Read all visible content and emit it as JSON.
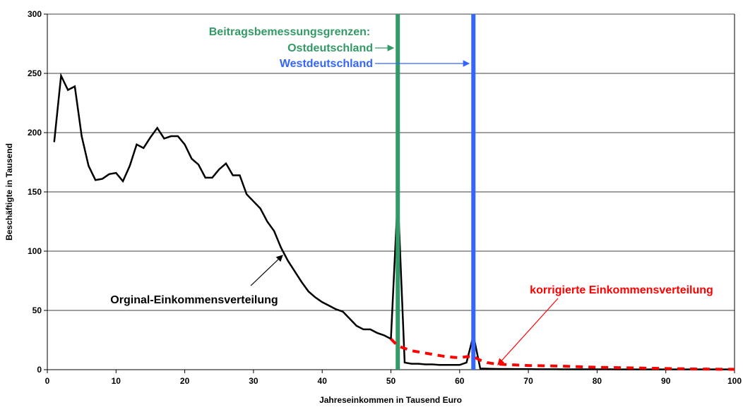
{
  "chart_data": {
    "type": "line",
    "xlabel": "Jahreseinkommen in Tausend Euro",
    "ylabel": "Beschäftigte in Tausend",
    "xlim": [
      0,
      100
    ],
    "xticks": [
      0,
      10,
      20,
      30,
      40,
      50,
      60,
      70,
      80,
      90,
      100
    ],
    "ylim": [
      0,
      300
    ],
    "yticks": [
      0,
      50,
      100,
      150,
      200,
      250,
      300
    ],
    "grid": true,
    "series": [
      {
        "name": "Orginal-Einkommensverteilung",
        "color": "#000000",
        "dashed": false,
        "x": [
          1,
          2,
          3,
          4,
          5,
          6,
          7,
          8,
          9,
          10,
          11,
          12,
          13,
          14,
          15,
          16,
          17,
          18,
          19,
          20,
          21,
          22,
          23,
          24,
          25,
          26,
          27,
          28,
          29,
          30,
          31,
          32,
          33,
          34,
          35,
          36,
          37,
          38,
          39,
          40,
          41,
          42,
          43,
          44,
          45,
          46,
          47,
          48,
          49,
          50,
          51,
          52,
          53,
          54,
          55,
          56,
          57,
          58,
          59,
          60,
          61,
          62,
          63,
          64,
          65,
          66,
          67,
          68,
          69,
          70,
          71,
          72,
          73,
          74,
          75,
          76,
          77,
          78,
          79,
          80,
          81,
          82,
          83,
          84,
          85,
          86,
          87,
          88,
          89,
          90,
          91,
          92,
          93,
          94,
          95,
          96,
          97,
          98,
          99,
          100
        ],
        "values": [
          192,
          248,
          236,
          239,
          197,
          172,
          160,
          161,
          165,
          166,
          159,
          172,
          190,
          187,
          196,
          204,
          195,
          197,
          197,
          190,
          178,
          173,
          162,
          162,
          169,
          174,
          164,
          164,
          148,
          142,
          136,
          125,
          117,
          103,
          92,
          83,
          74,
          66,
          61,
          57,
          54,
          51,
          49,
          43,
          37,
          34,
          34,
          31,
          29,
          26,
          147,
          6,
          5,
          5,
          4.5,
          4.5,
          4,
          4,
          4,
          4,
          6,
          29,
          1,
          0.8,
          0.7,
          0.6,
          0.6,
          0.5,
          0.5,
          0.5,
          0.4,
          0.4,
          0.4,
          0.4,
          0.3,
          0.3,
          0.3,
          0.3,
          0.3,
          0.3,
          0.3,
          0.3,
          0.2,
          0.2,
          0.2,
          0.2,
          0.2,
          0.2,
          0.2,
          0.2,
          0.2,
          0.2,
          0.2,
          0.2,
          0.2,
          0.2,
          0.2,
          0.2,
          0.2,
          0.2
        ]
      },
      {
        "name": "korrigierte Einkommensverteilung",
        "color": "#ff0000",
        "dashed": true,
        "x": [
          50,
          51,
          52,
          53,
          54,
          55,
          56,
          57,
          58,
          59,
          60,
          61,
          62,
          63,
          64,
          65,
          66,
          68,
          70,
          75,
          80,
          85,
          90,
          95,
          100
        ],
        "values": [
          26,
          20,
          18,
          16,
          15,
          14,
          13,
          12,
          11,
          10.5,
          10,
          11,
          11,
          8,
          6,
          5,
          4.5,
          4,
          3.5,
          3,
          2,
          1.5,
          1,
          0.5,
          0.3
        ]
      }
    ],
    "vlines_title": "Beitragsbemessungsgrenzen:",
    "vlines": [
      {
        "name": "Ostdeutschland",
        "x": 51,
        "color": "#339966"
      },
      {
        "name": "Westdeutschland",
        "x": 62,
        "color": "#3366ff"
      }
    ]
  }
}
